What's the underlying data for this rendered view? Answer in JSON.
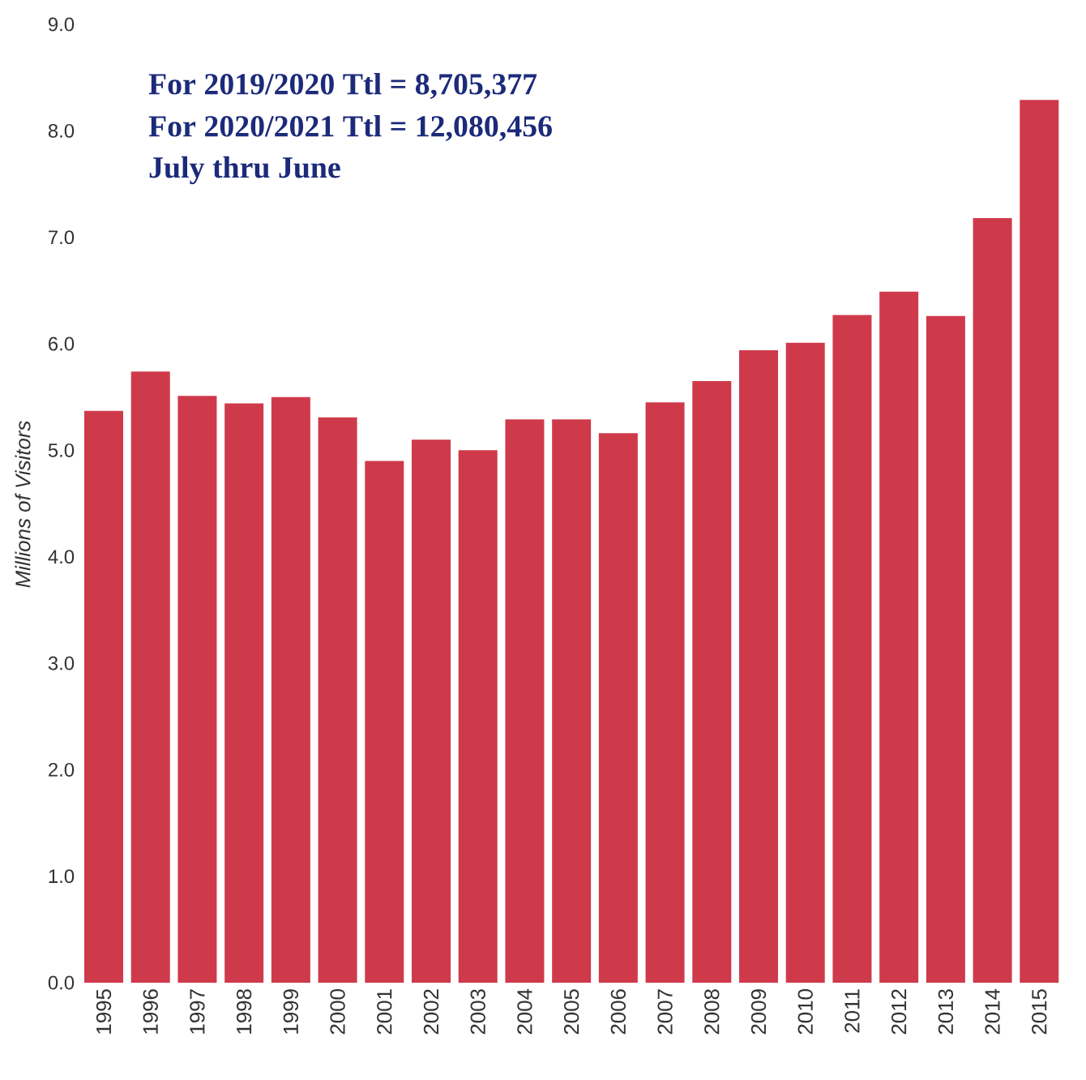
{
  "chart_data": {
    "type": "bar",
    "ylabel": "Millions of Visitors",
    "categories": [
      "1995",
      "1996",
      "1997",
      "1998",
      "1999",
      "2000",
      "2001",
      "2002",
      "2003",
      "2004",
      "2005",
      "2006",
      "2007",
      "2008",
      "2009",
      "2010",
      "2011",
      "2012",
      "2013",
      "2014",
      "2015"
    ],
    "values": [
      5.37,
      5.74,
      5.51,
      5.44,
      5.5,
      5.31,
      4.9,
      5.1,
      5.0,
      5.29,
      5.29,
      5.16,
      5.45,
      5.65,
      5.94,
      6.01,
      6.27,
      6.49,
      6.26,
      7.18,
      8.29
    ],
    "color": "#cf3a4b",
    "ylim": [
      0,
      9
    ],
    "yticks": [
      {
        "value": 0,
        "label": "0.0"
      },
      {
        "value": 1,
        "label": "1.0"
      },
      {
        "value": 2,
        "label": "2.0"
      },
      {
        "value": 3,
        "label": "3.0"
      },
      {
        "value": 4,
        "label": "4.0"
      },
      {
        "value": 5,
        "label": "5.0"
      },
      {
        "value": 6,
        "label": "6.0"
      },
      {
        "value": 7,
        "label": "7.0"
      },
      {
        "value": 8,
        "label": "8.0"
      },
      {
        "value": 9,
        "label": "9.0"
      }
    ],
    "annotations": [
      "For 2019/2020 Ttl = 8,705,377",
      "For 2020/2021 Ttl = 12,080,456",
      "July thru June"
    ]
  }
}
